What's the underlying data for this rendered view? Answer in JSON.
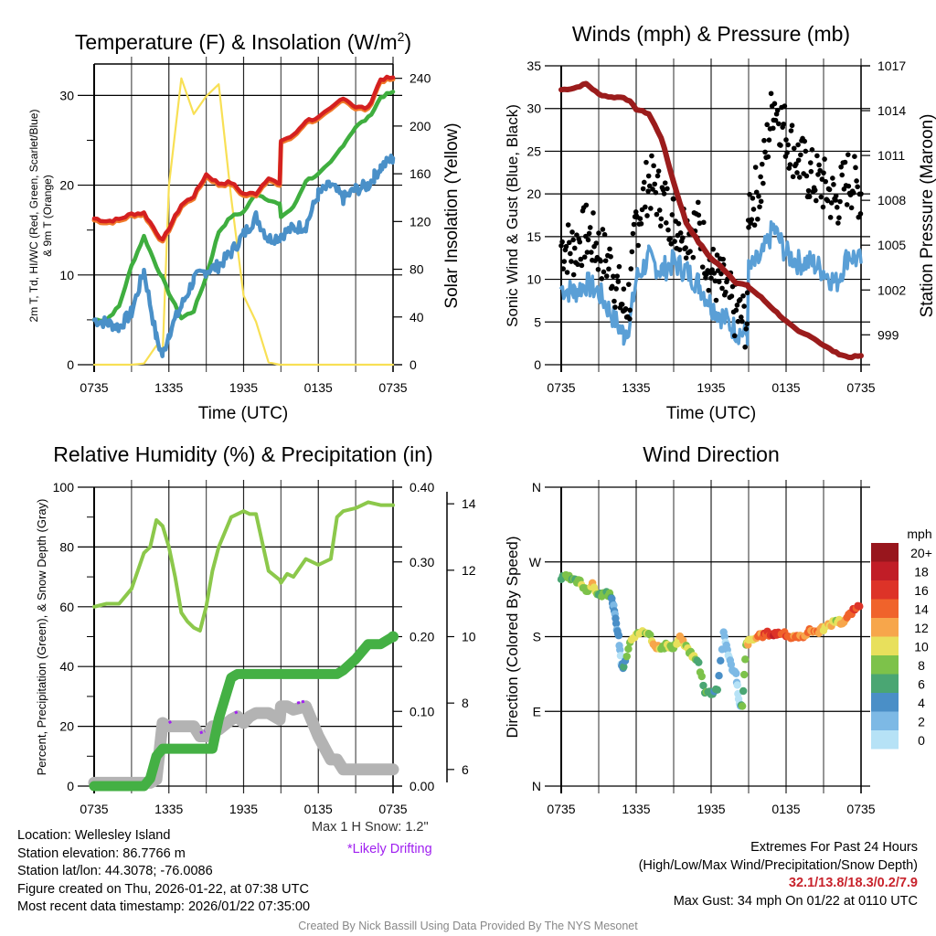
{
  "time_ticks": [
    "0735",
    "1335",
    "1935",
    "0135",
    "0735"
  ],
  "time_hours": 24,
  "panels": {
    "temperature": {
      "title": "Temperature (F) & Insolation (W/m²)",
      "title_main": "Temperature (F) & Insolation (W/m",
      "title_sup": "2",
      "title_end": ")",
      "xlabel": "Time (UTC)",
      "ylabel_line1": "2m T, Td, HI/WC (Red, Green, Scarlet/Blue)",
      "ylabel_line2": "& 9m T (Orange)",
      "ylabel_right": "Solar Insolation (Yellow)"
    },
    "winds": {
      "title": "Winds (mph) & Pressure (mb)",
      "xlabel": "Time (UTC)",
      "ylabel": "Sonic Wind & Gust (Blue, Black)",
      "ylabel_right": "Station Pressure (Maroon)"
    },
    "humidity": {
      "title": "Relative Humidity (%) & Precipitation (in)",
      "ylabel": "Percent, Precipitation (Green), & Snow Depth (Gray)",
      "snow_note": "Max 1 H Snow: 1.2\"",
      "drift_note": "*Likely Drifting"
    },
    "direction": {
      "title": "Wind Direction",
      "ylabel": "Direction (Colored By Speed)",
      "colorbar_title": "mph",
      "colorbar_labels": [
        "20+",
        "18",
        "16",
        "14",
        "12",
        "10",
        "8",
        "6",
        "4",
        "2",
        "0"
      ],
      "colorbar_colors": [
        "#98161d",
        "#c11d27",
        "#dd3328",
        "#f0632b",
        "#f7a64b",
        "#e8e05c",
        "#7dc24a",
        "#4aa673",
        "#4a8fc7",
        "#7db9e5",
        "#b6e2f6"
      ]
    }
  },
  "info": {
    "location": "Location: Wellesley Island",
    "elevation": "Station elevation: 86.7766 m",
    "latlon": "Station lat/lon: 44.3078; -76.0086",
    "created": "Figure created on Thu, 2026-01-22, at 07:38 UTC",
    "recent": "Most recent data timestamp: 2026/01/22 07:35:00",
    "extremes_title": "Extremes For Past 24 Hours",
    "extremes_subtitle": "(High/Low/Max Wind/Precipitation/Snow Depth)",
    "extremes_values": "32.1/13.8/18.3/0.2/7.9",
    "max_gust": "Max Gust: 34 mph On 01/22 at 0110 UTC",
    "credit": "Created By Nick Bassill Using Data Provided By The NYS Mesonet"
  },
  "colors": {
    "temp": "#d42020",
    "temp9m": "#f07a2a",
    "dewpoint": "#3fae3f",
    "windchill": "#4a90c8",
    "insolation": "#f8e055",
    "wind": "#5a9fd6",
    "gust": "#000000",
    "pressure": "#9b1c1c",
    "rh": "#8cc84b",
    "precip": "#44b044",
    "snow": "#b3b3b3",
    "drift": "#a020f0",
    "extremes": "#c8232c"
  },
  "chart_data": [
    {
      "type": "line",
      "title": "Temperature (F) & Insolation (W/m2)",
      "xlabel": "Time (UTC)",
      "ylabel": "2m T, Td, HI/WC (Red, Green, Scarlet/Blue) & 9m T (Orange)",
      "ylabel_right": "Solar Insolation (Yellow)",
      "x_hours": [
        0,
        1,
        2,
        3,
        4,
        5,
        5.5,
        6,
        7,
        8,
        9,
        10,
        11,
        12,
        13,
        14,
        14.9,
        15,
        16,
        17,
        18,
        19,
        20,
        21,
        22,
        22.5,
        23,
        24
      ],
      "ylim": [
        0,
        33.5
      ],
      "yticks": [
        0,
        10,
        20,
        30
      ],
      "ylim_right": [
        0,
        252
      ],
      "yticks_right": [
        0,
        40,
        80,
        120,
        160,
        200,
        240
      ],
      "series": [
        {
          "name": "2m T",
          "axis": "left",
          "values": [
            16.3,
            16.0,
            16.2,
            16.8,
            16.9,
            14.8,
            13.8,
            15.2,
            17.8,
            18.8,
            21.2,
            20.2,
            20.3,
            19.0,
            19.1,
            20.9,
            20.0,
            25.0,
            25.5,
            27.2,
            27.5,
            28.5,
            29.8,
            28.7,
            28.6,
            30.2,
            31.8,
            32.0
          ]
        },
        {
          "name": "Dew Point",
          "axis": "left",
          "values": [
            5,
            5,
            6.5,
            11,
            14.3,
            11,
            9.6,
            8,
            5.2,
            6,
            9.8,
            14.8,
            16.5,
            17.0,
            19.1,
            18.4,
            17.8,
            16.5,
            17.5,
            20.5,
            21.2,
            22.5,
            24.5,
            26.5,
            27.5,
            28.5,
            29.8,
            30.4
          ]
        },
        {
          "name": "Wind Chill",
          "axis": "left",
          "values": [
            5,
            4.7,
            4.2,
            5.8,
            10.5,
            3.0,
            1.0,
            3.5,
            6.5,
            9.5,
            10.5,
            11.0,
            12.5,
            14.5,
            16.5,
            14.0,
            14.3,
            14.5,
            15.2,
            15.5,
            19.0,
            20.0,
            18.5,
            19.5,
            20.0,
            21.0,
            22.0,
            23.0
          ]
        },
        {
          "name": "Solar Insolation",
          "axis": "right",
          "values": [
            0,
            0,
            0,
            0,
            1,
            16,
            9,
            150,
            240,
            210,
            225,
            235,
            140,
            58,
            36,
            2,
            0,
            0,
            0,
            0,
            0,
            0,
            0,
            0,
            0,
            0,
            0,
            0
          ]
        }
      ]
    },
    {
      "type": "line",
      "title": "Winds (mph) & Pressure (mb)",
      "xlabel": "Time (UTC)",
      "ylabel": "Sonic Wind & Gust (Blue, Black)",
      "ylabel_right": "Station Pressure (Maroon)",
      "x_hours": [
        0,
        1,
        2,
        3,
        4,
        5,
        5.5,
        6,
        7,
        8,
        9,
        10,
        11,
        12,
        13,
        14,
        14.9,
        15,
        16,
        17,
        18,
        19,
        20,
        21,
        22,
        23,
        24
      ],
      "ylim": [
        0,
        35
      ],
      "yticks": [
        0,
        5,
        10,
        15,
        20,
        25,
        30,
        35
      ],
      "ylim_right": [
        997,
        1017
      ],
      "yticks_right": [
        999,
        1002,
        1005,
        1008,
        1011,
        1014,
        1017
      ],
      "series": [
        {
          "name": "Sonic Wind",
          "axis": "left",
          "values": [
            9,
            8.5,
            9.5,
            8.5,
            6,
            3.5,
            5,
            10,
            12.5,
            11,
            12,
            11,
            9.5,
            7,
            5.5,
            4,
            3.5,
            11,
            12.5,
            16,
            13,
            12,
            12,
            11,
            9.5,
            13,
            12
          ]
        },
        {
          "name": "Gust",
          "axis": "left",
          "values": [
            14,
            13.5,
            15.5,
            13.5,
            11.5,
            6.5,
            8,
            16.5,
            21.5,
            19.5,
            17,
            16,
            16,
            11,
            9,
            6,
            5,
            18.5,
            21,
            31,
            27,
            24,
            22,
            21,
            19,
            22,
            20
          ]
        },
        {
          "name": "Station Pressure",
          "axis": "right",
          "values": [
            1015.4,
            1015.5,
            1015.8,
            1015.1,
            1014.9,
            1014.9,
            1014.6,
            1014.1,
            1013.8,
            1012.2,
            1009.2,
            1006.5,
            1005.2,
            1004.1,
            1003.4,
            1002.5,
            1002.3,
            1002.2,
            1001.5,
            1000.7,
            999.9,
            999.2,
            998.9,
            998.3,
            997.8,
            997.5,
            997.6
          ]
        }
      ]
    },
    {
      "type": "line",
      "title": "Relative Humidity (%) & Precipitation (in)",
      "ylabel": "Percent, Precipitation (Green), & Snow Depth (Gray)",
      "x_hours": [
        0,
        1,
        1.5,
        2,
        3,
        3.5,
        4,
        4.5,
        5,
        5.5,
        6,
        6.5,
        7,
        7.5,
        8,
        8.5,
        9,
        9.5,
        10,
        11,
        11.5,
        12,
        12.5,
        13,
        14,
        14.9,
        15,
        15.5,
        16,
        17,
        18,
        19,
        19.5,
        20,
        21,
        22,
        23,
        24
      ],
      "ylim": [
        0,
        100
      ],
      "yticks": [
        0,
        20,
        40,
        60,
        80,
        100
      ],
      "ylim_right": [
        0,
        0.4
      ],
      "yticks_right": [
        0.0,
        0.1,
        0.2,
        0.3,
        0.4
      ],
      "ylim_snow": [
        5.5,
        14.5
      ],
      "yticks_snow": [
        6,
        8,
        10,
        12,
        14
      ],
      "series": [
        {
          "name": "Relative Humidity",
          "axis": "left",
          "values": [
            60,
            61,
            61,
            61,
            66,
            72,
            78,
            80,
            89,
            87,
            80,
            70,
            58,
            55,
            53,
            52,
            60,
            72,
            80,
            90,
            91,
            92,
            91,
            91,
            72,
            69,
            68,
            71,
            70,
            76,
            74,
            76,
            90,
            92,
            93,
            95,
            94,
            94
          ]
        },
        {
          "name": "Precipitation",
          "axis": "right",
          "values": [
            0,
            0,
            0,
            0,
            0,
            0,
            0,
            0.01,
            0.04,
            0.05,
            0.05,
            0.05,
            0.05,
            0.05,
            0.05,
            0.05,
            0.05,
            0.05,
            0.09,
            0.145,
            0.15,
            0.15,
            0.15,
            0.15,
            0.15,
            0.15,
            0.15,
            0.15,
            0.15,
            0.15,
            0.15,
            0.15,
            0.15,
            0.155,
            0.17,
            0.19,
            0.19,
            0.2
          ]
        },
        {
          "name": "Snow Depth",
          "axis": "snow",
          "values": [
            5.6,
            5.6,
            5.6,
            5.6,
            5.6,
            5.6,
            5.6,
            5.6,
            5.7,
            7.4,
            7.3,
            7.3,
            7.3,
            7.3,
            7.3,
            7.0,
            7.0,
            7.3,
            7.2,
            7.5,
            7.6,
            7.4,
            7.6,
            7.7,
            7.7,
            7.5,
            7.9,
            7.9,
            7.8,
            7.9,
            7.0,
            6.3,
            6.3,
            6.0,
            6.0,
            6.0,
            6.0,
            6.0
          ]
        }
      ],
      "drifting_segments_hours": [
        [
          6.0,
          6.2
        ],
        [
          8.5,
          8.9
        ],
        [
          11.3,
          11.6
        ],
        [
          16.3,
          16.9
        ]
      ],
      "annotations": [
        "Max 1 H Snow: 1.2\"",
        "*Likely Drifting"
      ]
    },
    {
      "type": "scatter",
      "title": "Wind Direction",
      "ylabel": "Direction (Colored By Speed)",
      "ylim": [
        0,
        360
      ],
      "yticks": [
        "N",
        "E",
        "S",
        "W",
        "N"
      ],
      "ytick_degrees": [
        0,
        90,
        180,
        270,
        360
      ],
      "colorbar": {
        "title": "mph",
        "levels": [
          0,
          2,
          4,
          6,
          8,
          10,
          12,
          14,
          16,
          18,
          20
        ]
      },
      "x_hours": [
        0,
        0.5,
        1,
        1.5,
        2,
        2.5,
        3,
        3.5,
        4,
        4.2,
        4.4,
        4.6,
        4.8,
        5,
        5.5,
        6,
        6.5,
        7,
        7.5,
        8,
        8.5,
        9,
        9.5,
        10,
        10.5,
        11,
        11.5,
        12,
        12.5,
        13,
        13.3,
        13.6,
        14,
        14.2,
        14.5,
        14.8,
        15,
        15.5,
        16,
        16.5,
        17,
        17.5,
        18,
        18.5,
        19,
        19.5,
        20,
        20.5,
        21,
        21.5,
        22,
        22.5,
        23,
        23.5,
        24
      ],
      "directions": [
        250,
        252,
        247,
        246,
        236,
        242,
        230,
        232,
        229,
        215,
        195,
        179,
        148,
        142,
        173,
        180,
        188,
        185,
        170,
        165,
        170,
        166,
        178,
        168,
        158,
        148,
        115,
        112,
        118,
        183,
        165,
        145,
        135,
        103,
        95,
        170,
        174,
        178,
        181,
        184,
        183,
        185,
        182,
        179,
        178,
        183,
        188,
        186,
        190,
        194,
        200,
        197,
        205,
        213,
        216
      ],
      "speeds": [
        8,
        9,
        8,
        10,
        8,
        12,
        8,
        8,
        7,
        4,
        4,
        4,
        2,
        6,
        10,
        10,
        12,
        10,
        14,
        10,
        10,
        8,
        12,
        10,
        10,
        8,
        7,
        8,
        5,
        4,
        2,
        2,
        2,
        1,
        8,
        10,
        12,
        12,
        14,
        16,
        18,
        17,
        16,
        14,
        14,
        13,
        14,
        14,
        12,
        12,
        10,
        12,
        14,
        15,
        17
      ]
    }
  ]
}
